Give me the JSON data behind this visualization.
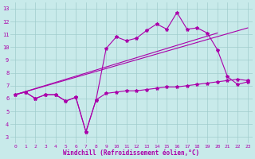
{
  "xlabel": "Windchill (Refroidissement éolien,°C)",
  "xlim": [
    -0.5,
    23.5
  ],
  "ylim": [
    2.5,
    13.5
  ],
  "yticks": [
    3,
    4,
    5,
    6,
    7,
    8,
    9,
    10,
    11,
    12,
    13
  ],
  "xticks": [
    0,
    1,
    2,
    3,
    4,
    5,
    6,
    7,
    8,
    9,
    10,
    11,
    12,
    13,
    14,
    15,
    16,
    17,
    18,
    19,
    20,
    21,
    22,
    23
  ],
  "bg_color": "#c8eaea",
  "grid_color": "#a0cccc",
  "line_color": "#aa00aa",
  "line1_x": [
    0,
    1,
    2,
    3,
    4,
    5,
    6,
    7,
    8,
    9,
    10,
    11,
    12,
    13,
    14,
    15,
    16,
    17,
    18,
    19,
    20,
    21,
    22,
    23
  ],
  "line1_y": [
    6.3,
    6.5,
    6.0,
    6.3,
    6.3,
    5.8,
    6.1,
    3.4,
    5.9,
    6.4,
    6.5,
    6.6,
    6.6,
    6.7,
    6.8,
    6.9,
    6.9,
    7.0,
    7.1,
    7.2,
    7.3,
    7.4,
    7.5,
    7.4
  ],
  "line2_x": [
    0,
    1,
    2,
    3,
    4,
    5,
    6,
    7,
    8,
    9,
    10,
    11,
    12,
    13,
    14,
    15,
    16,
    17,
    18,
    19,
    20,
    21,
    22,
    23
  ],
  "line2_y": [
    6.3,
    6.5,
    6.0,
    6.3,
    6.3,
    5.8,
    6.1,
    3.4,
    5.9,
    9.9,
    10.8,
    10.5,
    10.7,
    11.3,
    11.8,
    11.4,
    12.7,
    11.4,
    11.5,
    11.1,
    9.8,
    7.7,
    7.1,
    7.3
  ],
  "line3_x": [
    0,
    23
  ],
  "line3_y": [
    6.3,
    11.5
  ],
  "line4_x": [
    0,
    20
  ],
  "line4_y": [
    6.3,
    11.1
  ],
  "markersize": 3,
  "linewidth": 0.8
}
